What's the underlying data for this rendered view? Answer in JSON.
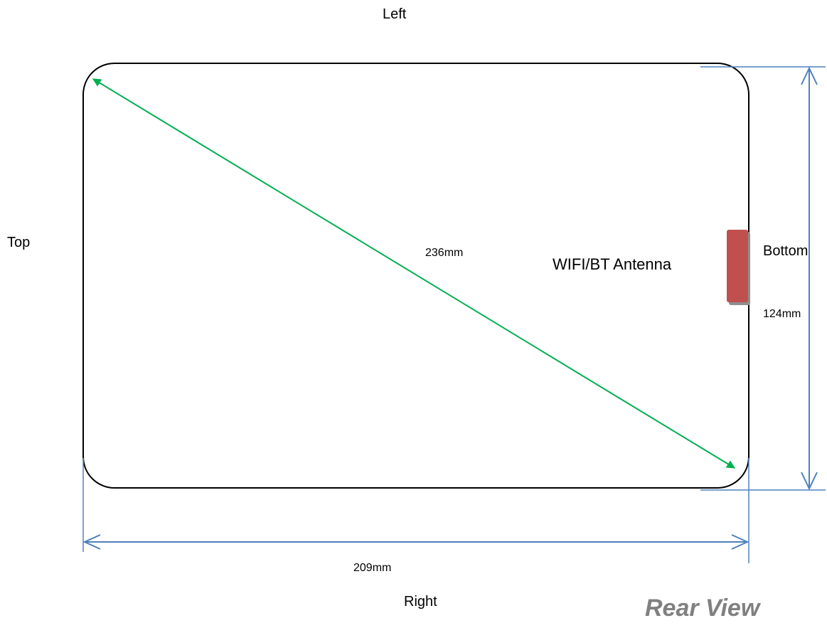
{
  "sides": {
    "left": "Left",
    "right": "Right",
    "top": "Top",
    "bottom": "Bottom"
  },
  "dimensions": {
    "diagonal": "236mm",
    "height": "124mm",
    "width": "209mm"
  },
  "antenna": {
    "label": "WIFI/BT Antenna",
    "color": "#C0504D"
  },
  "view_title": "Rear View",
  "colors": {
    "dimension_line": "#4F81BD",
    "diagonal_arrow": "#00B050",
    "outline": "#000000",
    "view_title": "#808080"
  }
}
